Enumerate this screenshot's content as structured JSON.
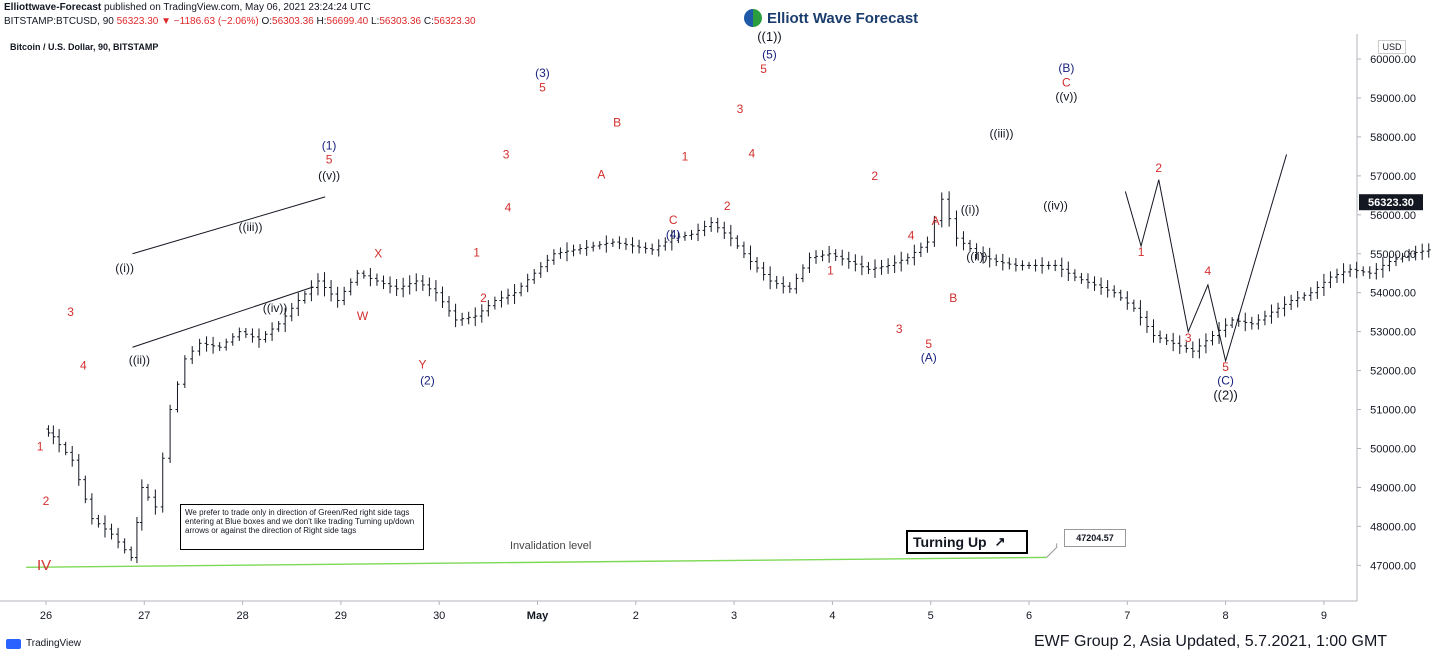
{
  "header": {
    "author": "Elliottwave-Forecast",
    "published": " published on TradingView.com, May 06, 2021 23:24:24 UTC",
    "symbol": "BITSTAMP:BTCUSD, 90",
    "last": "56323.30",
    "change": "▼ −1186.63 (−2.06%)",
    "ohlc": {
      "o_label": "O:",
      "o": "56303.36",
      "h_label": "H:",
      "h": "56699.40",
      "l_label": "L:",
      "l": "56303.36",
      "c_label": "C:",
      "c": "56323.30"
    }
  },
  "logo": {
    "text": "Elliott Wave Forecast",
    "icon": "ewf-logo-icon"
  },
  "chart_title": "Bitcoin / U.S. Dollar, 90, BITSTAMP",
  "currency_badge": "USD",
  "note_text": "We prefer to trade only in direction of Green/Red right side tags entering at Blue boxes and we don't like trading Turning up/down arrows or against the direction of Right side tags",
  "turning_label": "Turning Up",
  "turning_icon": "arrow-up-right-icon",
  "invalidation_label": "Invalidation level",
  "invalidation_value": "47204.57",
  "tradingview_label": "TradingView",
  "footer": "EWF Group 2, Asia Updated, 5.7.2021, 1:00 GMT",
  "colors": {
    "up": "#131722",
    "down": "#131722",
    "red_label": "#d32f2f",
    "blue_label": "#1a237e",
    "invalidation": "#7ed957"
  },
  "chart_data": {
    "type": "bar",
    "y_ticks": [
      "60000.00",
      "59000.00",
      "58000.00",
      "57000.00",
      "56000.00",
      "55000.00",
      "54000.00",
      "53000.00",
      "52000.00",
      "51000.00",
      "50000.00",
      "49000.00",
      "48000.00",
      "47000.00"
    ],
    "x_ticks": [
      "26",
      "27",
      "28",
      "29",
      "30",
      "May",
      "2",
      "3",
      "4",
      "5",
      "6",
      "7",
      "8",
      "9"
    ],
    "ylim": [
      46100,
      60800
    ],
    "last_price_label": "56323.30",
    "price_path": [
      [
        0.0,
        50500
      ],
      [
        0.1,
        50300
      ],
      [
        0.3,
        49700
      ],
      [
        0.5,
        48200
      ],
      [
        0.7,
        47800
      ],
      [
        0.9,
        47200
      ],
      [
        1.0,
        49000
      ],
      [
        1.15,
        48500
      ],
      [
        1.3,
        51000
      ],
      [
        1.45,
        52300
      ],
      [
        1.6,
        52700
      ],
      [
        1.8,
        52600
      ],
      [
        2.0,
        53000
      ],
      [
        2.2,
        52800
      ],
      [
        2.4,
        53200
      ],
      [
        2.6,
        53800
      ],
      [
        2.8,
        54300
      ],
      [
        3.0,
        53800
      ],
      [
        3.2,
        54500
      ],
      [
        3.4,
        54300
      ],
      [
        3.6,
        54100
      ],
      [
        3.8,
        54300
      ],
      [
        4.0,
        54000
      ],
      [
        4.2,
        53300
      ],
      [
        4.4,
        53400
      ],
      [
        4.6,
        53800
      ],
      [
        4.8,
        54000
      ],
      [
        5.0,
        54500
      ],
      [
        5.2,
        55000
      ],
      [
        5.4,
        55100
      ],
      [
        5.6,
        55200
      ],
      [
        5.8,
        55300
      ],
      [
        6.0,
        55200
      ],
      [
        6.2,
        55100
      ],
      [
        6.4,
        55400
      ],
      [
        6.6,
        55500
      ],
      [
        6.8,
        55800
      ],
      [
        7.0,
        55400
      ],
      [
        7.2,
        54800
      ],
      [
        7.4,
        54300
      ],
      [
        7.6,
        54100
      ],
      [
        7.8,
        54900
      ],
      [
        8.0,
        55000
      ],
      [
        8.2,
        54800
      ],
      [
        8.4,
        54600
      ],
      [
        8.6,
        54700
      ],
      [
        8.8,
        54900
      ],
      [
        9.0,
        55300
      ],
      [
        9.15,
        56400
      ],
      [
        9.3,
        55400
      ],
      [
        9.5,
        55000
      ],
      [
        9.7,
        54800
      ],
      [
        9.9,
        54700
      ],
      [
        10.1,
        54700
      ],
      [
        10.3,
        54700
      ],
      [
        10.5,
        54400
      ],
      [
        10.7,
        54200
      ],
      [
        10.9,
        54000
      ],
      [
        11.1,
        53600
      ],
      [
        11.3,
        52900
      ],
      [
        11.5,
        52700
      ],
      [
        11.7,
        52500
      ],
      [
        11.9,
        52900
      ],
      [
        12.1,
        53300
      ],
      [
        12.3,
        53200
      ],
      [
        12.5,
        53500
      ],
      [
        12.7,
        53800
      ],
      [
        12.9,
        54000
      ],
      [
        13.1,
        54400
      ],
      [
        13.3,
        54600
      ],
      [
        13.5,
        54500
      ],
      [
        13.7,
        54800
      ],
      [
        13.9,
        55000
      ],
      [
        14.1,
        55100
      ],
      [
        14.3,
        56500
      ],
      [
        14.5,
        56900
      ],
      [
        14.7,
        57300
      ],
      [
        14.9,
        57100
      ],
      [
        15.1,
        57400
      ],
      [
        15.3,
        57500
      ],
      [
        15.5,
        57800
      ],
      [
        15.7,
        58200
      ],
      [
        15.9,
        58400
      ],
      [
        16.1,
        58600
      ],
      [
        16.3,
        58300
      ],
      [
        16.5,
        58100
      ],
      [
        16.7,
        58000
      ],
      [
        16.9,
        57800
      ],
      [
        17.1,
        57700
      ],
      [
        17.3,
        58000
      ],
      [
        17.5,
        57800
      ],
      [
        17.7,
        57700
      ],
      [
        17.9,
        57500
      ],
      [
        18.1,
        57800
      ],
      [
        18.3,
        58000
      ],
      [
        18.5,
        57800
      ],
      [
        18.7,
        57900
      ],
      [
        18.9,
        57700
      ],
      [
        19.1,
        57400
      ],
      [
        19.3,
        57000
      ],
      [
        19.5,
        56800
      ],
      [
        19.7,
        56500
      ],
      [
        19.9,
        56400
      ],
      [
        20.1,
        56800
      ],
      [
        20.3,
        57000
      ],
      [
        20.5,
        57100
      ],
      [
        20.7,
        57000
      ],
      [
        20.9,
        56800
      ],
      [
        21.1,
        56900
      ],
      [
        21.3,
        56600
      ],
      [
        21.5,
        56700
      ],
      [
        21.7,
        56800
      ],
      [
        21.9,
        56700
      ],
      [
        22.1,
        56900
      ],
      [
        22.3,
        56500
      ],
      [
        22.5,
        57200
      ],
      [
        22.7,
        57600
      ],
      [
        22.9,
        58000
      ],
      [
        23.1,
        58200
      ],
      [
        23.3,
        58000
      ],
      [
        23.5,
        58500
      ],
      [
        23.7,
        58400
      ],
      [
        23.9,
        58700
      ],
      [
        24.1,
        59000
      ],
      [
        24.3,
        58800
      ],
      [
        24.5,
        58600
      ],
      [
        24.7,
        58700
      ],
      [
        24.9,
        58400
      ],
      [
        25.1,
        58100
      ],
      [
        25.3,
        57700
      ],
      [
        25.5,
        57900
      ],
      [
        25.7,
        57800
      ],
      [
        25.9,
        57500
      ],
      [
        26.1,
        57200
      ],
      [
        26.3,
        57000
      ],
      [
        26.5,
        57200
      ],
      [
        26.7,
        56300
      ],
      [
        26.9,
        55500
      ],
      [
        27.1,
        55300
      ],
      [
        27.3,
        55800
      ],
      [
        27.5,
        55700
      ],
      [
        27.7,
        55900
      ],
      [
        27.9,
        56100
      ],
      [
        28.1,
        56300
      ],
      [
        28.3,
        56400
      ],
      [
        28.5,
        56000
      ],
      [
        28.7,
        55600
      ],
      [
        28.9,
        55300
      ],
      [
        29.1,
        54900
      ],
      [
        29.3,
        54200
      ],
      [
        29.5,
        53600
      ],
      [
        29.7,
        54000
      ],
      [
        29.9,
        54400
      ],
      [
        30.1,
        54600
      ],
      [
        30.3,
        54000
      ],
      [
        30.5,
        53400
      ],
      [
        30.7,
        53000
      ],
      [
        30.9,
        54300
      ],
      [
        31.1,
        54800
      ],
      [
        31.3,
        55000
      ],
      [
        31.5,
        54500
      ],
      [
        31.7,
        54200
      ],
      [
        31.9,
        54400
      ],
      [
        32.1,
        54800
      ],
      [
        32.3,
        55000
      ],
      [
        32.5,
        55300
      ],
      [
        32.7,
        55700
      ],
      [
        32.9,
        56600
      ],
      [
        33.1,
        57300
      ],
      [
        33.3,
        57600
      ],
      [
        33.5,
        57400
      ],
      [
        33.7,
        57200
      ],
      [
        33.9,
        57400
      ],
      [
        34.1,
        57500
      ],
      [
        34.3,
        57200
      ],
      [
        34.5,
        57000
      ],
      [
        34.7,
        56800
      ],
      [
        34.9,
        56900
      ],
      [
        35.1,
        57300
      ],
      [
        35.3,
        57100
      ],
      [
        35.5,
        57600
      ],
      [
        35.7,
        58200
      ],
      [
        35.9,
        58000
      ],
      [
        36.1,
        57600
      ],
      [
        36.3,
        57200
      ],
      [
        36.5,
        57000
      ],
      [
        36.7,
        56700
      ],
      [
        36.9,
        55600
      ],
      [
        37.1,
        55800
      ],
      [
        37.3,
        56300
      ],
      [
        37.5,
        56500
      ],
      [
        37.7,
        56300
      ]
    ],
    "wave_labels": [
      {
        "text": "IV",
        "d": -0.02,
        "p": 46880,
        "color": "red",
        "size": 15
      },
      {
        "text": "1",
        "d": -0.06,
        "p": 49950,
        "color": "red"
      },
      {
        "text": "2",
        "d": 0.0,
        "p": 48550,
        "color": "red"
      },
      {
        "text": "3",
        "d": 0.25,
        "p": 53400,
        "color": "red"
      },
      {
        "text": "4",
        "d": 0.38,
        "p": 52030,
        "color": "red"
      },
      {
        "text": "((i))",
        "d": 0.8,
        "p": 54530,
        "color": "black"
      },
      {
        "text": "((ii))",
        "d": 0.95,
        "p": 52170,
        "color": "black"
      },
      {
        "text": "((iii))",
        "d": 2.08,
        "p": 55580,
        "color": "black"
      },
      {
        "text": "((iv))",
        "d": 2.33,
        "p": 53500,
        "color": "black"
      },
      {
        "text": "(1)",
        "d": 2.88,
        "p": 57680,
        "color": "blue"
      },
      {
        "text": "5",
        "d": 2.88,
        "p": 57320,
        "color": "red"
      },
      {
        "text": "((v))",
        "d": 2.88,
        "p": 56900,
        "color": "black"
      },
      {
        "text": "X",
        "d": 3.38,
        "p": 54900,
        "color": "red"
      },
      {
        "text": "W",
        "d": 3.22,
        "p": 53300,
        "color": "red"
      },
      {
        "text": "Y",
        "d": 3.83,
        "p": 52050,
        "color": "red"
      },
      {
        "text": "(2)",
        "d": 3.88,
        "p": 51640,
        "color": "blue"
      },
      {
        "text": "1",
        "d": 4.38,
        "p": 54930,
        "color": "red"
      },
      {
        "text": "2",
        "d": 4.45,
        "p": 53760,
        "color": "red"
      },
      {
        "text": "3",
        "d": 4.68,
        "p": 57440,
        "color": "red"
      },
      {
        "text": "4",
        "d": 4.7,
        "p": 56090,
        "color": "red"
      },
      {
        "text": "(3)",
        "d": 5.05,
        "p": 59540,
        "color": "blue"
      },
      {
        "text": "5",
        "d": 5.05,
        "p": 59170,
        "color": "red"
      },
      {
        "text": "B",
        "d": 5.81,
        "p": 58270,
        "color": "red"
      },
      {
        "text": "A",
        "d": 5.65,
        "p": 56930,
        "color": "red"
      },
      {
        "text": "1",
        "d": 6.5,
        "p": 57390,
        "color": "red"
      },
      {
        "text": "C",
        "d": 6.38,
        "p": 55760,
        "color": "red"
      },
      {
        "text": "(4)",
        "d": 6.38,
        "p": 55390,
        "color": "blue"
      },
      {
        "text": "2",
        "d": 6.93,
        "p": 56120,
        "color": "red"
      },
      {
        "text": "3",
        "d": 7.06,
        "p": 58620,
        "color": "red"
      },
      {
        "text": "4",
        "d": 7.18,
        "p": 57470,
        "color": "red"
      },
      {
        "text": "((1))",
        "d": 7.36,
        "p": 60460,
        "color": "black",
        "size": 13
      },
      {
        "text": "(5)",
        "d": 7.36,
        "p": 60010,
        "color": "blue"
      },
      {
        "text": "5",
        "d": 7.3,
        "p": 59640,
        "color": "red"
      },
      {
        "text": "1",
        "d": 7.98,
        "p": 54470,
        "color": "red"
      },
      {
        "text": "2",
        "d": 8.43,
        "p": 56890,
        "color": "red"
      },
      {
        "text": "4",
        "d": 8.8,
        "p": 55360,
        "color": "red"
      },
      {
        "text": "3",
        "d": 8.68,
        "p": 52970,
        "color": "red"
      },
      {
        "text": "5",
        "d": 8.98,
        "p": 52580,
        "color": "red"
      },
      {
        "text": "(A)",
        "d": 8.98,
        "p": 52230,
        "color": "blue"
      },
      {
        "text": "A",
        "d": 9.05,
        "p": 55740,
        "color": "red"
      },
      {
        "text": "B",
        "d": 9.23,
        "p": 53760,
        "color": "red"
      },
      {
        "text": "((i))",
        "d": 9.4,
        "p": 56030,
        "color": "black"
      },
      {
        "text": "((ii))",
        "d": 9.47,
        "p": 54830,
        "color": "black"
      },
      {
        "text": "((iii))",
        "d": 9.72,
        "p": 57990,
        "color": "black"
      },
      {
        "text": "((iv))",
        "d": 10.27,
        "p": 56140,
        "color": "black"
      },
      {
        "text": "(B)",
        "d": 10.38,
        "p": 59670,
        "color": "blue"
      },
      {
        "text": "C",
        "d": 10.38,
        "p": 59300,
        "color": "red"
      },
      {
        "text": "((v))",
        "d": 10.38,
        "p": 58930,
        "color": "black"
      }
    ],
    "projection": {
      "points": [
        [
          10.98,
          56600
        ],
        [
          11.14,
          55200
        ],
        [
          11.32,
          56900
        ],
        [
          11.62,
          53000
        ],
        [
          11.82,
          54200
        ],
        [
          12.0,
          52250
        ],
        [
          12.62,
          57550
        ]
      ],
      "labels": [
        {
          "text": "1",
          "d": 11.14,
          "p": 54940,
          "color": "red"
        },
        {
          "text": "2",
          "d": 11.32,
          "p": 57100,
          "color": "red"
        },
        {
          "text": "3",
          "d": 11.62,
          "p": 52740,
          "color": "red"
        },
        {
          "text": "4",
          "d": 11.82,
          "p": 54450,
          "color": "red"
        },
        {
          "text": "5",
          "d": 12.0,
          "p": 51990,
          "color": "red"
        },
        {
          "text": "(C)",
          "d": 12.0,
          "p": 51640,
          "color": "blue"
        },
        {
          "text": "((2))",
          "d": 12.0,
          "p": 51260,
          "color": "black",
          "size": 13
        }
      ]
    },
    "channel": {
      "upper": [
        [
          0.88,
          55000
        ],
        [
          2.84,
          56460
        ]
      ],
      "lower": [
        [
          0.88,
          52600
        ],
        [
          2.72,
          54150
        ]
      ]
    },
    "invalidation": {
      "value": 47204.57,
      "d_from": -0.1,
      "d_to": 10.18
    },
    "grid": false,
    "legend": "none"
  }
}
